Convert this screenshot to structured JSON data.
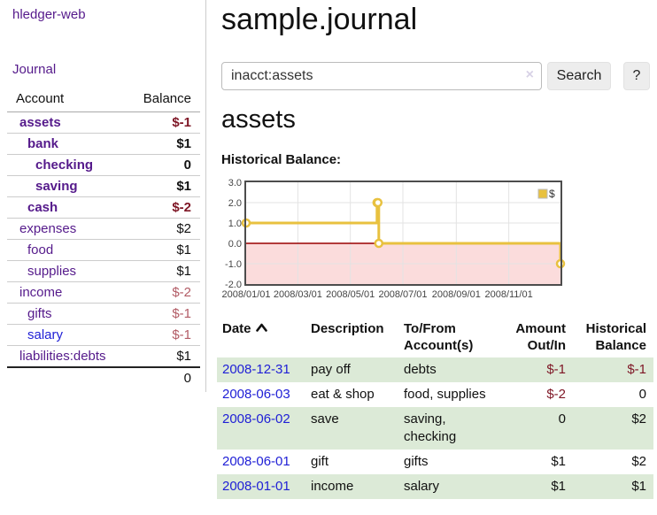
{
  "brand": "hledger-web",
  "sidebar": {
    "journal_link": "Journal",
    "accounts": {
      "col_account": "Account",
      "col_balance": "Balance",
      "rows": [
        {
          "name": "assets",
          "balance": "$-1"
        },
        {
          "name": "bank",
          "balance": "$1"
        },
        {
          "name": "checking",
          "balance": "0"
        },
        {
          "name": "saving",
          "balance": "$1"
        },
        {
          "name": "cash",
          "balance": "$-2"
        },
        {
          "name": "expenses",
          "balance": "$2"
        },
        {
          "name": "food",
          "balance": "$1"
        },
        {
          "name": "supplies",
          "balance": "$1"
        },
        {
          "name": "income",
          "balance": "$-2"
        },
        {
          "name": "gifts",
          "balance": "$-1"
        },
        {
          "name": "salary",
          "balance": "$-1"
        },
        {
          "name": "liabilities:debts",
          "balance": "$1"
        }
      ],
      "total": "0"
    }
  },
  "main": {
    "title": "sample.journal",
    "search": {
      "value": "inacct:assets",
      "clear": "×",
      "search_label": "Search",
      "help_label": "?"
    },
    "heading": "assets",
    "chart_title": "Historical Balance:"
  },
  "chart_data": {
    "type": "line",
    "step": true,
    "title": "Historical Balance",
    "x_range": [
      "2008-01-01",
      "2008-12-31"
    ],
    "ylim": [
      -2,
      3
    ],
    "yticks": [
      3,
      2,
      1,
      0,
      -1,
      -2
    ],
    "xticks": [
      "2008/01/01",
      "2008/03/01",
      "2008/05/01",
      "2008/07/01",
      "2008/09/01",
      "2008/11/01"
    ],
    "grid": true,
    "legend": {
      "position": "top-right",
      "label": "$"
    },
    "series": [
      {
        "name": "$",
        "color": "#e8c13f",
        "points": [
          [
            "2008-01-01",
            1
          ],
          [
            "2008-06-01",
            2
          ],
          [
            "2008-06-02",
            2
          ],
          [
            "2008-06-03",
            0
          ],
          [
            "2008-12-31",
            -1
          ]
        ]
      }
    ],
    "negative_region_color": "#fbdcdc",
    "zero_line_color": "#990000"
  },
  "register": {
    "columns": {
      "date": "Date",
      "description": "Description",
      "accounts": "To/From Account(s)",
      "amount": "Amount Out/In",
      "balance": "Historical Balance"
    },
    "rows": [
      {
        "date": "2008-12-31",
        "description": "pay off",
        "accounts": "debts",
        "amount": "$-1",
        "balance": "$-1"
      },
      {
        "date": "2008-06-03",
        "description": "eat & shop",
        "accounts": "food, supplies",
        "amount": "$-2",
        "balance": "0"
      },
      {
        "date": "2008-06-02",
        "description": "save",
        "accounts": "saving, checking",
        "amount": "0",
        "balance": "$2"
      },
      {
        "date": "2008-06-01",
        "description": "gift",
        "accounts": "gifts",
        "amount": "$1",
        "balance": "$2"
      },
      {
        "date": "2008-01-01",
        "description": "income",
        "accounts": "salary",
        "amount": "$1",
        "balance": "$1"
      }
    ]
  }
}
